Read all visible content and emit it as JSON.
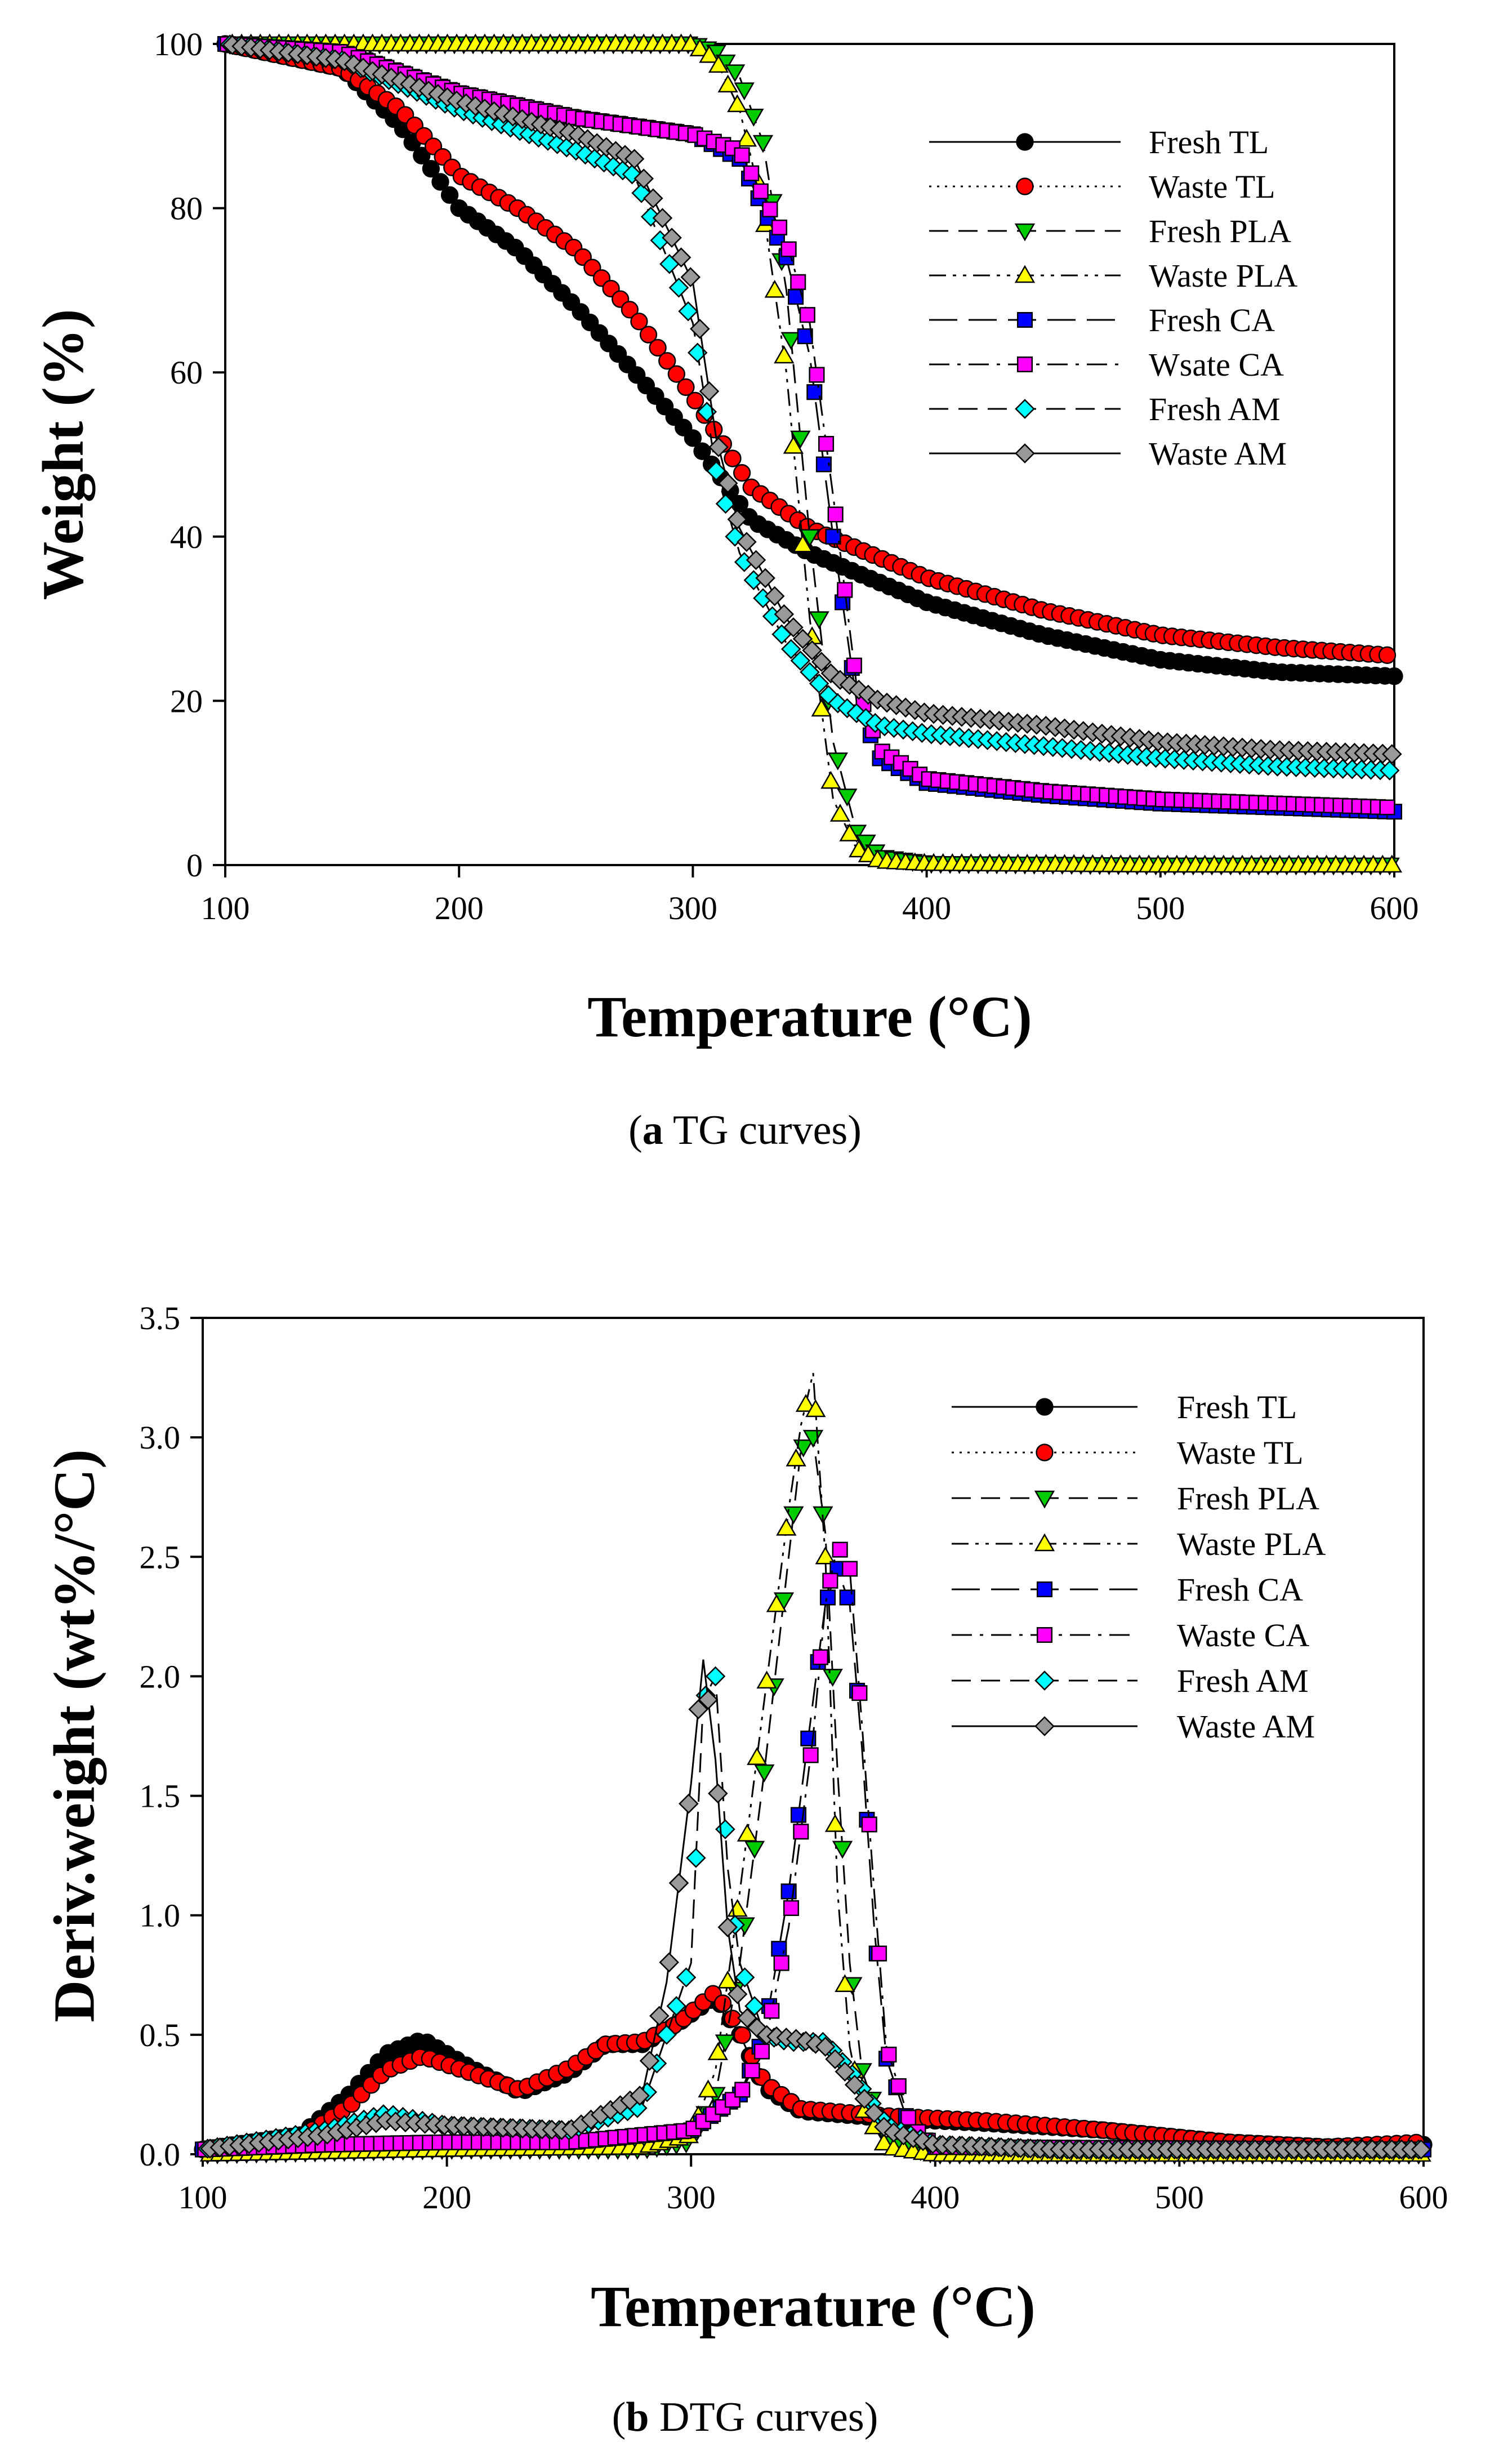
{
  "figure": {
    "caption_a_letter": "a",
    "caption_a_text": " TG curves",
    "caption_b_letter": "b",
    "caption_b_text": " DTG curves"
  },
  "chart_data": [
    {
      "type": "line",
      "id": "tg",
      "title": "",
      "xlabel": "Temperature (°C)",
      "ylabel": "Weight (%)",
      "xlim": [
        100,
        600
      ],
      "ylim": [
        0,
        100
      ],
      "xticks": [
        100,
        200,
        300,
        400,
        500,
        600
      ],
      "yticks": [
        0,
        20,
        40,
        60,
        80,
        100
      ],
      "grid": false,
      "legend_position": "top-right",
      "series": [
        {
          "name": "Fresh TL",
          "color": "#000000",
          "marker": "circle",
          "dash": "solid",
          "x": [
            100,
            150,
            175,
            200,
            225,
            250,
            275,
            300,
            325,
            350,
            375,
            400,
            450,
            500,
            550,
            600
          ],
          "y": [
            100,
            97,
            90,
            80,
            75,
            68,
            60,
            52,
            42,
            38,
            35,
            32,
            28,
            25,
            23.5,
            23
          ]
        },
        {
          "name": "Waste TL",
          "color": "#ff0000",
          "marker": "circle",
          "dash": "dot",
          "x": [
            100,
            150,
            175,
            200,
            225,
            250,
            275,
            300,
            325,
            350,
            375,
            400,
            450,
            500,
            550,
            600
          ],
          "y": [
            100,
            97,
            92,
            84,
            80,
            75,
            67,
            57,
            46,
            41,
            38,
            35,
            31,
            28,
            26.5,
            25.5
          ]
        },
        {
          "name": "Fresh PLA",
          "color": "#00cc00",
          "marker": "triangle-down",
          "dash": "dash",
          "x": [
            100,
            200,
            300,
            310,
            320,
            330,
            340,
            350,
            360,
            370,
            380,
            400,
            500,
            600
          ],
          "y": [
            100,
            100,
            100,
            99,
            96,
            88,
            70,
            40,
            15,
            4,
            1,
            0.2,
            0,
            0
          ]
        },
        {
          "name": "Waste PLA",
          "color": "#ffff00",
          "marker": "triangle-up",
          "dash": "dashdotdot",
          "x": [
            100,
            200,
            300,
            310,
            320,
            330,
            340,
            350,
            360,
            370,
            380,
            400,
            500,
            600
          ],
          "y": [
            100,
            100,
            100,
            98,
            92,
            80,
            60,
            30,
            8,
            2,
            0.5,
            0.2,
            0,
            0
          ]
        },
        {
          "name": "Fresh CA",
          "color": "#0000ff",
          "marker": "square",
          "dash": "longdash",
          "x": [
            100,
            150,
            200,
            250,
            300,
            320,
            340,
            350,
            360,
            370,
            380,
            400,
            450,
            500,
            550,
            600
          ],
          "y": [
            100,
            99,
            94,
            91,
            89,
            86,
            74,
            62,
            40,
            20,
            13,
            10,
            8.5,
            7.5,
            7,
            6.5
          ]
        },
        {
          "name": "Wsate CA",
          "color": "#ff00ff",
          "marker": "square",
          "dash": "dashdot",
          "x": [
            100,
            150,
            200,
            250,
            300,
            320,
            340,
            350,
            360,
            370,
            380,
            400,
            450,
            500,
            550,
            600
          ],
          "y": [
            100,
            99,
            94,
            91,
            89,
            87,
            76,
            66,
            45,
            22,
            14,
            10.5,
            9,
            8,
            7.5,
            7
          ]
        },
        {
          "name": "Fresh AM",
          "color": "#00ffff",
          "marker": "diamond",
          "dash": "dash",
          "x": [
            100,
            150,
            200,
            250,
            275,
            300,
            310,
            320,
            340,
            360,
            380,
            400,
            450,
            500,
            550,
            600
          ],
          "y": [
            100,
            98,
            92,
            87,
            84,
            66,
            48,
            38,
            27,
            20,
            17,
            16,
            14.5,
            13,
            12,
            11.5
          ]
        },
        {
          "name": "Waste AM",
          "color": "#999999",
          "marker": "diamond",
          "dash": "solid",
          "x": [
            100,
            150,
            200,
            250,
            275,
            300,
            310,
            320,
            340,
            360,
            380,
            400,
            450,
            500,
            550,
            600
          ],
          "y": [
            100,
            98,
            93,
            89,
            86,
            71,
            52,
            41,
            30,
            23,
            20,
            18.5,
            17,
            15,
            14,
            13.5
          ]
        }
      ]
    },
    {
      "type": "line",
      "id": "dtg",
      "title": "",
      "xlabel": "Temperature (°C)",
      "ylabel": "Deriv.weight (wt%/°C)",
      "xlim": [
        100,
        600
      ],
      "ylim": [
        0,
        3.5
      ],
      "xticks": [
        100,
        200,
        300,
        400,
        500,
        600
      ],
      "yticks": [
        0.0,
        0.5,
        1.0,
        1.5,
        2.0,
        2.5,
        3.0,
        3.5
      ],
      "ytick_labels": [
        "0.0",
        "0.5",
        "1.0",
        "1.5",
        "2.0",
        "2.5",
        "3.0",
        "3.5"
      ],
      "grid": false,
      "legend_position": "top-right",
      "series": [
        {
          "name": "Fresh TL",
          "color": "#000000",
          "marker": "circle",
          "dash": "solid",
          "x": [
            100,
            140,
            160,
            175,
            190,
            210,
            230,
            250,
            265,
            280,
            295,
            310,
            320,
            330,
            345,
            380,
            420,
            470,
            520,
            560,
            600
          ],
          "y": [
            0.02,
            0.08,
            0.25,
            0.42,
            0.48,
            0.36,
            0.26,
            0.34,
            0.46,
            0.46,
            0.55,
            0.66,
            0.5,
            0.28,
            0.18,
            0.15,
            0.13,
            0.1,
            0.05,
            0.03,
            0.04
          ]
        },
        {
          "name": "Waste TL",
          "color": "#ff0000",
          "marker": "circle",
          "dash": "dot",
          "x": [
            100,
            140,
            160,
            175,
            190,
            210,
            230,
            250,
            265,
            280,
            295,
            310,
            320,
            330,
            345,
            380,
            420,
            470,
            520,
            560,
            600
          ],
          "y": [
            0.02,
            0.07,
            0.2,
            0.35,
            0.41,
            0.34,
            0.27,
            0.36,
            0.46,
            0.47,
            0.55,
            0.68,
            0.52,
            0.3,
            0.19,
            0.16,
            0.14,
            0.1,
            0.05,
            0.03,
            0.05
          ]
        },
        {
          "name": "Fresh PLA",
          "color": "#00cc00",
          "marker": "triangle-down",
          "dash": "dash",
          "x": [
            100,
            200,
            280,
            300,
            310,
            320,
            330,
            340,
            345,
            350,
            355,
            360,
            365,
            370,
            380,
            400,
            600
          ],
          "y": [
            0,
            0.02,
            0.02,
            0.05,
            0.25,
            0.8,
            1.6,
            2.5,
            2.95,
            3.0,
            2.6,
            1.6,
            0.8,
            0.35,
            0.05,
            0,
            0
          ]
        },
        {
          "name": "Waste PLA",
          "color": "#ffff00",
          "marker": "triangle-up",
          "dash": "dashdotdot",
          "x": [
            100,
            200,
            280,
            300,
            310,
            320,
            330,
            340,
            345,
            350,
            355,
            360,
            365,
            370,
            380,
            400,
            600
          ],
          "y": [
            0,
            0.02,
            0.03,
            0.08,
            0.35,
            1.1,
            1.9,
            2.7,
            3.05,
            3.27,
            2.5,
            1.1,
            0.45,
            0.2,
            0.03,
            0,
            0
          ]
        },
        {
          "name": "Fresh CA",
          "color": "#0000ff",
          "marker": "square",
          "dash": "longdash",
          "x": [
            100,
            150,
            200,
            250,
            300,
            320,
            330,
            340,
            350,
            355,
            360,
            365,
            370,
            375,
            380,
            390,
            400,
            600
          ],
          "y": [
            0.02,
            0.04,
            0.05,
            0.05,
            0.1,
            0.25,
            0.5,
            1.1,
            1.9,
            2.3,
            2.45,
            2.3,
            1.7,
            0.95,
            0.4,
            0.1,
            0.03,
            0.02
          ]
        },
        {
          "name": "Waste CA",
          "color": "#ff00ff",
          "marker": "square",
          "dash": "dashdot",
          "x": [
            100,
            150,
            200,
            250,
            300,
            320,
            330,
            340,
            350,
            355,
            360,
            365,
            370,
            375,
            380,
            390,
            400,
            600
          ],
          "y": [
            0.02,
            0.04,
            0.05,
            0.05,
            0.1,
            0.25,
            0.45,
            0.95,
            1.75,
            2.3,
            2.55,
            2.45,
            1.8,
            1.1,
            0.45,
            0.12,
            0.03,
            0.02
          ]
        },
        {
          "name": "Fresh AM",
          "color": "#00ffff",
          "marker": "diamond",
          "dash": "dash",
          "x": [
            100,
            150,
            175,
            200,
            250,
            280,
            300,
            305,
            310,
            315,
            320,
            330,
            340,
            355,
            365,
            380,
            400,
            450,
            600
          ],
          "y": [
            0.02,
            0.1,
            0.17,
            0.12,
            0.1,
            0.2,
            0.8,
            1.9,
            2.0,
            1.2,
            0.8,
            0.5,
            0.47,
            0.47,
            0.35,
            0.12,
            0.04,
            0.02,
            0.02
          ]
        },
        {
          "name": "Waste AM",
          "color": "#999999",
          "marker": "diamond",
          "dash": "solid",
          "x": [
            100,
            150,
            175,
            200,
            250,
            280,
            290,
            300,
            305,
            310,
            315,
            320,
            330,
            345,
            355,
            365,
            380,
            400,
            450,
            600
          ],
          "y": [
            0.02,
            0.08,
            0.14,
            0.12,
            0.1,
            0.25,
            0.72,
            1.55,
            2.07,
            1.65,
            0.95,
            0.6,
            0.5,
            0.48,
            0.45,
            0.32,
            0.1,
            0.04,
            0.02,
            0.02
          ]
        }
      ]
    }
  ]
}
